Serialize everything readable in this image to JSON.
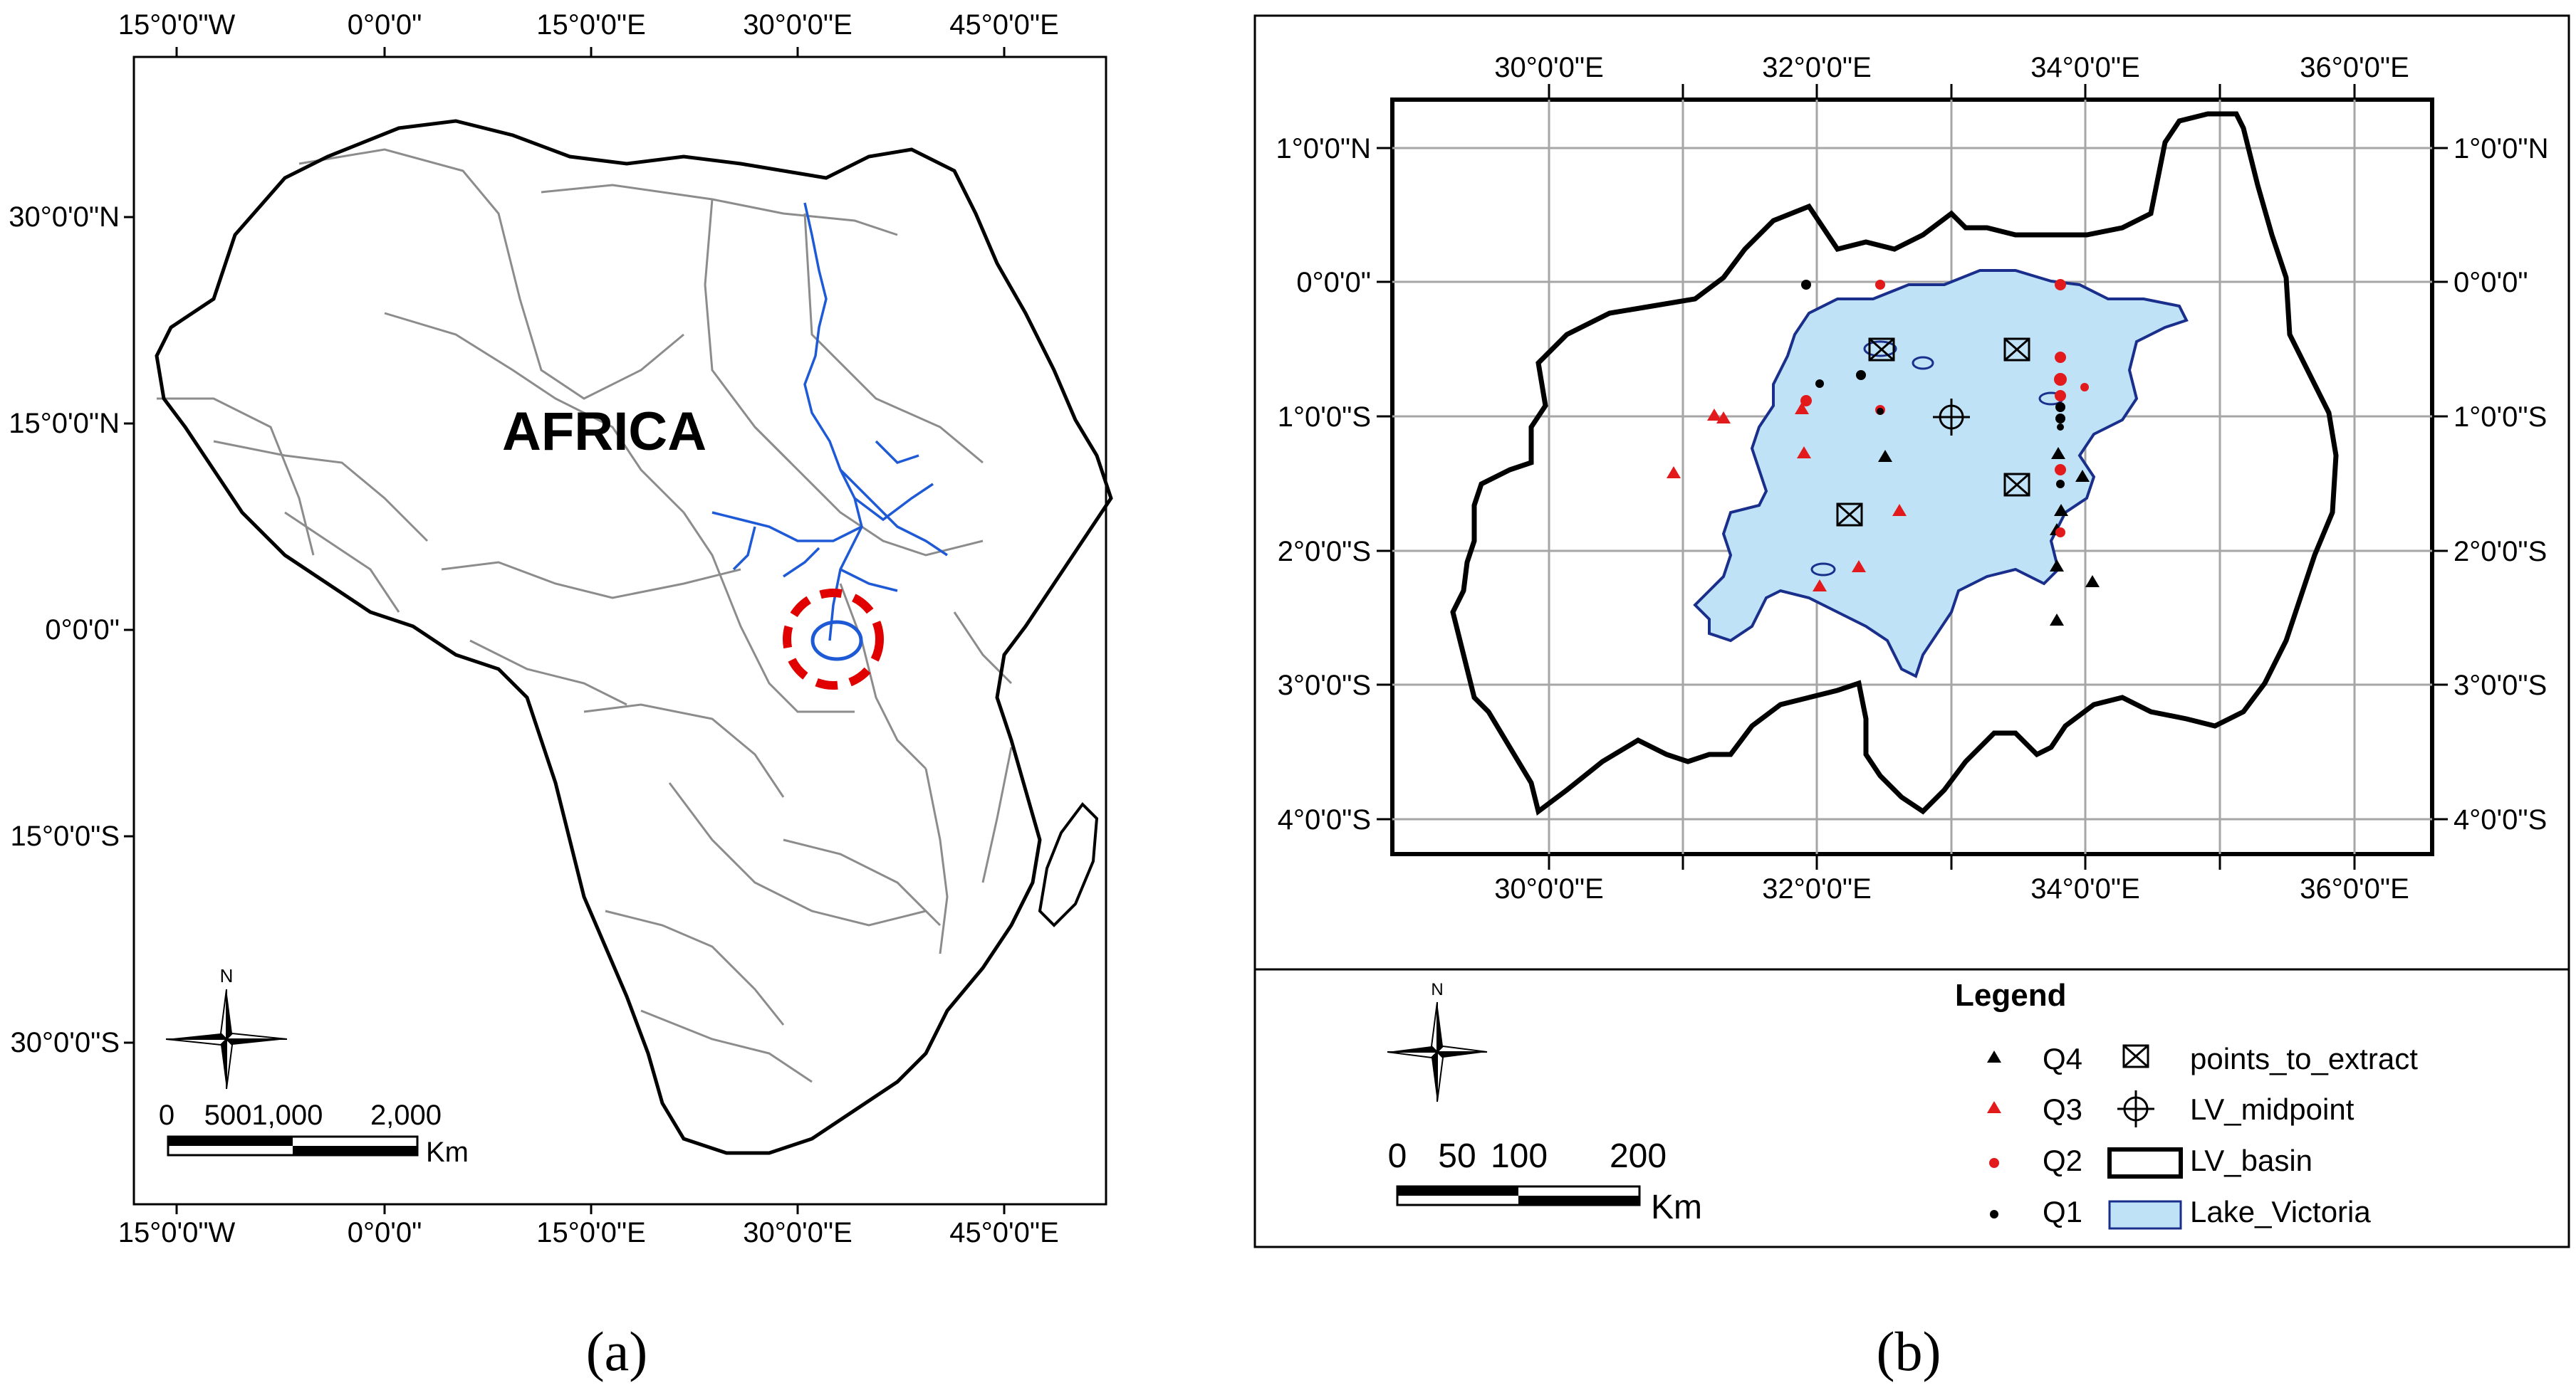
{
  "captions": {
    "a": "(a)",
    "b": "(b)"
  },
  "map_a": {
    "label": "AFRICA",
    "lon_top": [
      "15°0'0\"W",
      "0°0'0\"",
      "15°0'0\"E",
      "30°0'0\"E",
      "45°0'0\"E"
    ],
    "lon_bottom": [
      "15°0'0\"W",
      "0°0'0\"",
      "15°0'0\"E",
      "30°0'0\"E",
      "45°0'0\"E"
    ],
    "lat_left": [
      "30°0'0\"N",
      "15°0'0\"N",
      "0°0'0\"",
      "15°0'0\"S",
      "30°0'0\"S"
    ],
    "north": "N",
    "scale_labels": [
      "0",
      "5001,000",
      "2,000"
    ],
    "scale_unit": "Km"
  },
  "map_b": {
    "lon_top": [
      "30°0'0\"E",
      "32°0'0\"E",
      "34°0'0\"E",
      "36°0'0\"E"
    ],
    "lon_bottom": [
      "30°0'0\"E",
      "32°0'0\"E",
      "34°0'0\"E",
      "36°0'0\"E"
    ],
    "lat_left": [
      "1°0'0\"N",
      "0°0'0\"",
      "1°0'0\"S",
      "2°0'0\"S",
      "3°0'0\"S",
      "4°0'0\"S"
    ],
    "lat_right": [
      "1°0'0\"N",
      "0°0'0\"",
      "1°0'0\"S",
      "2°0'0\"S",
      "3°0'0\"S",
      "4°0'0\"S"
    ],
    "north": "N",
    "scale_labels": [
      "0",
      "50",
      "100",
      "200"
    ],
    "scale_unit": "Km",
    "legend": {
      "title": "Legend",
      "left_items": [
        "Q4",
        "Q3",
        "Q2",
        "Q1"
      ],
      "right_items": [
        "points_to_extract",
        "LV_midpoint",
        "LV_basin",
        "Lake_Victoria"
      ]
    },
    "colors": {
      "lake_fill": "#bfe2f7",
      "lake_edge": "#1a2f8c",
      "q3_q2": "#e31a1c",
      "q4_q1": "#000000"
    }
  }
}
